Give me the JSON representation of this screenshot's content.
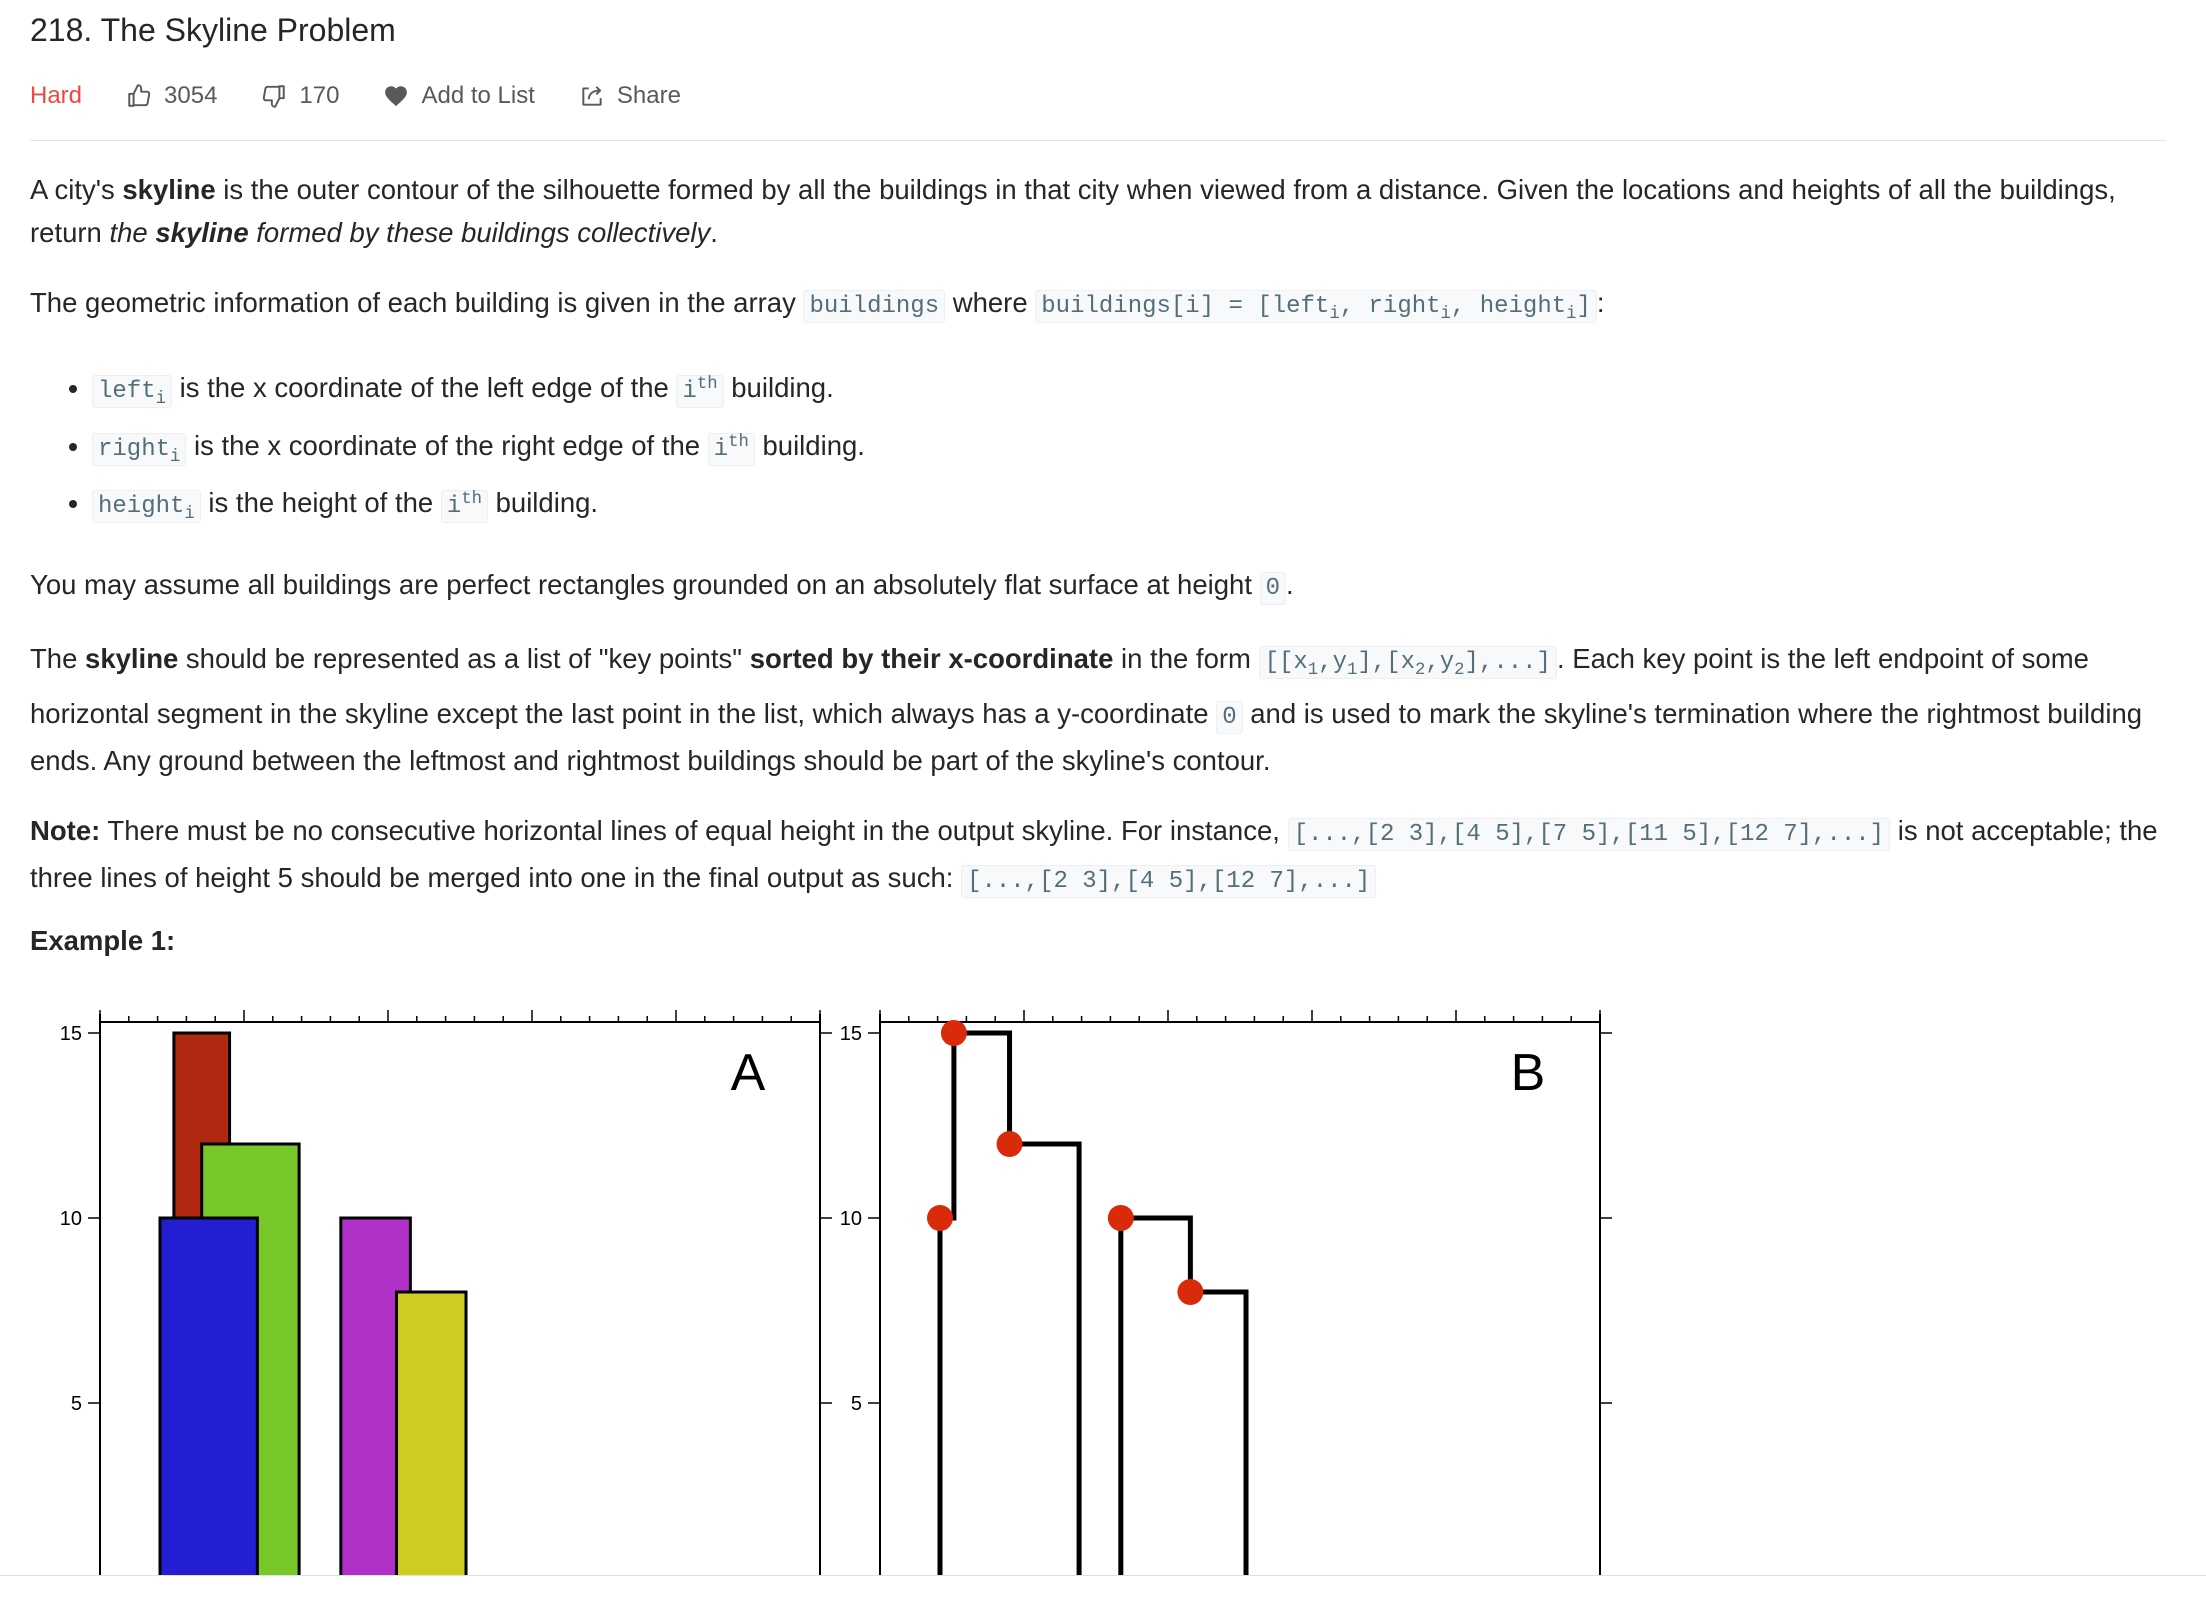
{
  "header": {
    "title": "218. The Skyline Problem",
    "difficulty": "Hard",
    "likes": "3054",
    "dislikes": "170",
    "add_to_list": "Add to List",
    "share": "Share"
  },
  "description": {
    "p1": {
      "t1": "A city's ",
      "b1": "skyline",
      "t2": " is the outer contour of the silhouette formed by all the buildings in that city when viewed from a distance. Given the locations and heights of all the buildings, return ",
      "i1": "the ",
      "ib1": "skyline",
      "i2": " formed by these buildings collectively",
      "t3": "."
    },
    "p2": {
      "t1": "The geometric information of each building is given in the array ",
      "c1": "buildings",
      "t2": " where ",
      "c2a": "buildings[i] = [left",
      "c2s1": "i",
      "c2b": ", right",
      "c2s2": "i",
      "c2c": ", height",
      "c2s3": "i",
      "c2d": "]",
      "t3": ":"
    },
    "bullets": [
      {
        "code": "left",
        "sub": "i",
        "text": " is the x coordinate of the left edge of the ",
        "ci": "i",
        "csup": "th",
        "end": " building."
      },
      {
        "code": "right",
        "sub": "i",
        "text": " is the x coordinate of the right edge of the ",
        "ci": "i",
        "csup": "th",
        "end": " building."
      },
      {
        "code": "height",
        "sub": "i",
        "text": " is the height of the ",
        "ci": "i",
        "csup": "th",
        "end": " building."
      }
    ],
    "p3": {
      "t1": "You may assume all buildings are perfect rectangles grounded on an absolutely flat surface at height ",
      "c1": "0",
      "t2": "."
    },
    "p4": {
      "t1": "The ",
      "b1": "skyline",
      "t2": " should be represented as a list of \"key points\" ",
      "b2": "sorted by their x-coordinate",
      "t3": " in the form ",
      "c1a": "[[x",
      "c1s1": "1",
      "c1b": ",y",
      "c1s2": "1",
      "c1c": "],[x",
      "c1s3": "2",
      "c1d": ",y",
      "c1s4": "2",
      "c1e": "],...]",
      "t4": ". Each key point is the left endpoint of some horizontal segment in the skyline except the last point in the list, which always has a y-coordinate ",
      "c2": "0",
      "t5": " and is used to mark the skyline's termination where the rightmost building ends. Any ground between the leftmost and rightmost buildings should be part of the skyline's contour."
    },
    "p5": {
      "b1": "Note:",
      "t1": " There must be no consecutive horizontal lines of equal height in the output skyline. For instance, ",
      "c1": "[...,[2 3],[4 5],[7 5],[11 5],[12 7],...]",
      "t2": " is not acceptable; the three lines of height ",
      "t2b": "5",
      "t3": " should be merged into one in the final output as such: ",
      "c2": "[...,[2 3],[4 5],[12 7],...]"
    },
    "example_title": "Example 1:"
  },
  "figure": {
    "panels": [
      {
        "label": "A"
      },
      {
        "label": "B"
      }
    ],
    "y_ticks": [
      "15",
      "10",
      "5"
    ],
    "colors": {
      "red": "#b0280f",
      "green": "#78c82a",
      "blue": "#241ed2",
      "purple": "#b030c8",
      "yellow": "#cccc22",
      "point": "#d92b0a"
    }
  },
  "chart_data": {
    "type": "bar",
    "title": "",
    "panels": [
      "A",
      "B"
    ],
    "ylim": [
      0,
      15
    ],
    "yticks": [
      5,
      10,
      15
    ],
    "buildings": [
      [
        2,
        9,
        10
      ],
      [
        3,
        7,
        15
      ],
      [
        5,
        12,
        12
      ],
      [
        15,
        20,
        10
      ],
      [
        19,
        24,
        8
      ]
    ],
    "skyline": [
      [
        2,
        10
      ],
      [
        3,
        15
      ],
      [
        7,
        12
      ],
      [
        12,
        0
      ],
      [
        15,
        10
      ],
      [
        20,
        8
      ],
      [
        24,
        0
      ]
    ]
  }
}
